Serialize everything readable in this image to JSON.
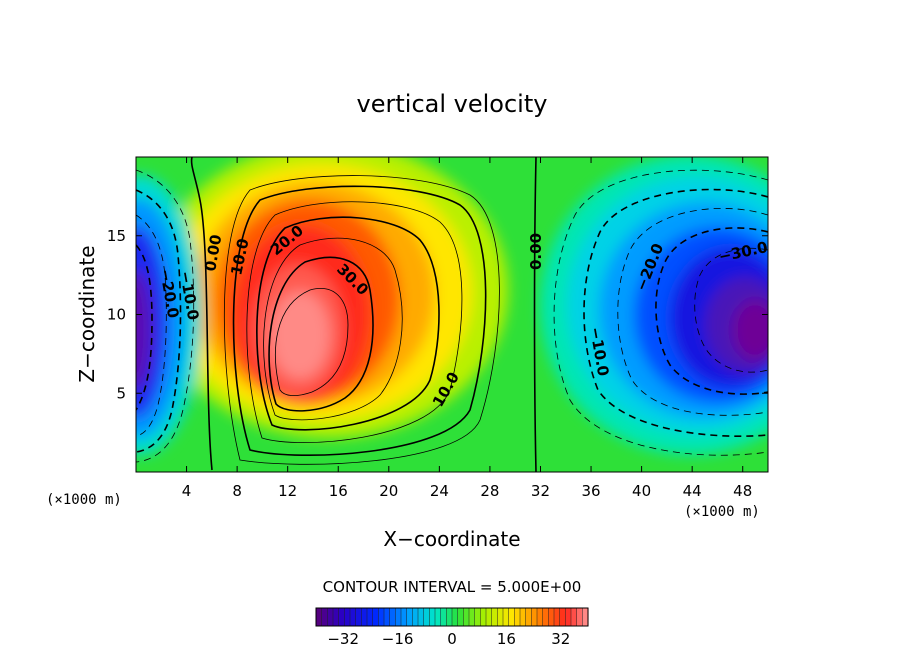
{
  "chart_data": {
    "type": "heatmap",
    "title": "vertical velocity",
    "xlabel": "X−coordinate",
    "ylabel": "Z−coordinate",
    "x_unit": "(×1000 m)",
    "y_unit": "(×1000 m)",
    "xlim": [
      0,
      50
    ],
    "ylim": [
      0,
      20
    ],
    "x_ticks": [
      "4",
      "8",
      "12",
      "16",
      "20",
      "24",
      "28",
      "32",
      "36",
      "40",
      "44",
      "48"
    ],
    "y_ticks": [
      "5",
      "10",
      "15"
    ],
    "contour_interval": "CONTOUR INTERVAL = 5.000E+00",
    "contour_labels": [
      "−20.0",
      "−10.0",
      "0.00",
      "10.0",
      "20.0",
      "30.0",
      "10.0",
      "0.00",
      "−10.0",
      "−20.0",
      "−30.0"
    ],
    "colorbar_ticks": [
      "−32",
      "−16",
      "0",
      "16",
      "32"
    ],
    "colorbar_range": [
      -40,
      40
    ],
    "colormap": "rainbow (purple → blue → cyan → green → yellow → red → pink)",
    "features": [
      {
        "kind": "updraft_max",
        "x": 13.5,
        "z": 8.5,
        "value": 40
      },
      {
        "kind": "downdraft_min",
        "x": 48.5,
        "z": 9.5,
        "value": -42
      },
      {
        "kind": "downdraft_min",
        "x": 0.2,
        "z": 8.5,
        "value": -38
      },
      {
        "kind": "zero_line",
        "x": 6.5
      },
      {
        "kind": "zero_line",
        "x": 31.5
      }
    ],
    "solid_contours": "positive values",
    "dashed_contours": "negative values"
  }
}
